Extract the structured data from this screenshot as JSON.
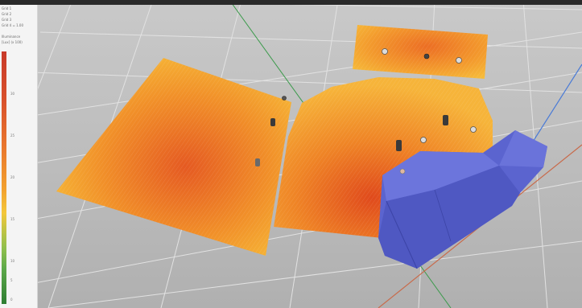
{
  "viewport": {
    "name": "3d-viewport",
    "background": "#bdbdbd",
    "grid_color": "#e2e2e2"
  },
  "legend": {
    "info_lines": [
      "Grid 1",
      "Grid 2",
      "Grid 3",
      "Grid 4 = 1.00",
      "Illuminance",
      "[Lux] (x 100)"
    ],
    "ticks": [
      "30",
      "25",
      "20",
      "15",
      "10",
      "5",
      "0"
    ],
    "colors": [
      "#c83a2a",
      "#e9772e",
      "#f3c73a",
      "#8fbf4d",
      "#2e7d32"
    ]
  },
  "scene": {
    "heatmap_colors": {
      "hot": "#e2501e",
      "warm": "#f08a24",
      "mild": "#f7b23a",
      "cool": "#f4c23c"
    },
    "obstacle_color": "#5b64cf",
    "axis_colors": {
      "x": "#c86a4a",
      "y": "#4a7bd6",
      "z": "#3a9a4a"
    }
  }
}
